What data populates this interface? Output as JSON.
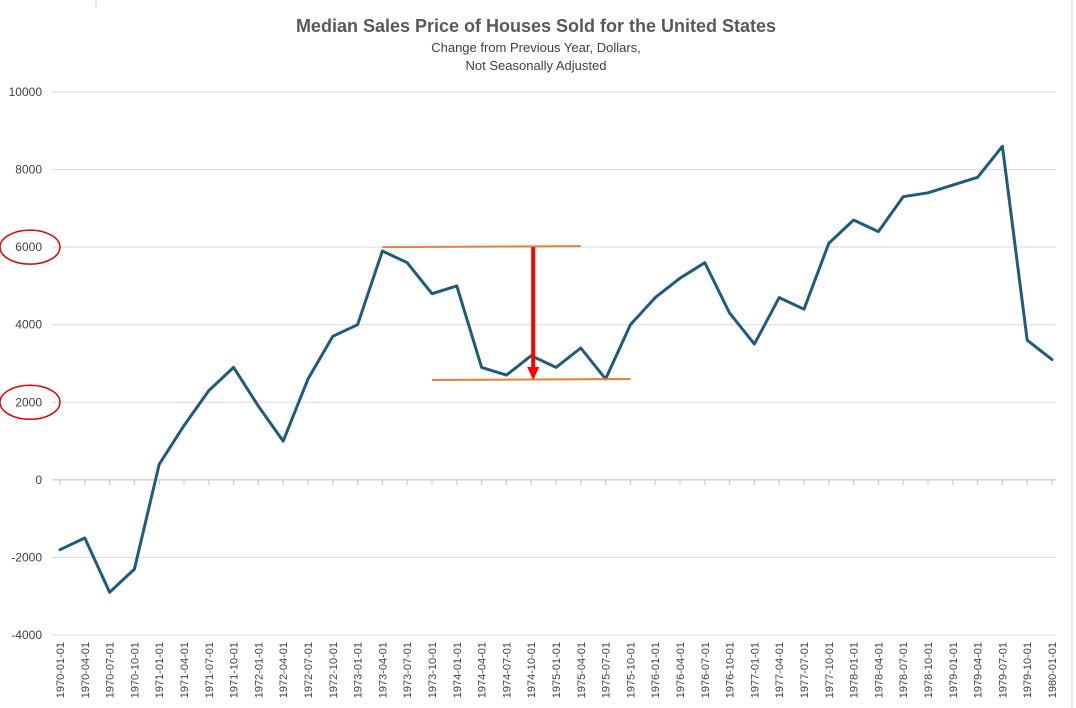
{
  "chart_data": {
    "type": "line",
    "title": "Median Sales Price of Houses Sold for the United States",
    "subtitle_lines": [
      "Change from Previous Year, Dollars,",
      "Not Seasonally Adjusted"
    ],
    "xlabel": "",
    "ylabel": "",
    "ylim": [
      -4000,
      10000
    ],
    "yticks": [
      -4000,
      -2000,
      0,
      2000,
      4000,
      6000,
      8000,
      10000
    ],
    "grid": true,
    "legend": "none",
    "series_color": "#1f5c7a",
    "categories": [
      "1970-01-01",
      "1970-04-01",
      "1970-07-01",
      "1970-10-01",
      "1971-01-01",
      "1971-04-01",
      "1971-07-01",
      "1971-10-01",
      "1972-01-01",
      "1972-04-01",
      "1972-07-01",
      "1972-10-01",
      "1973-01-01",
      "1973-04-01",
      "1973-07-01",
      "1973-10-01",
      "1974-01-01",
      "1974-04-01",
      "1974-07-01",
      "1974-10-01",
      "1975-01-01",
      "1975-04-01",
      "1975-07-01",
      "1975-10-01",
      "1976-01-01",
      "1976-04-01",
      "1976-07-01",
      "1976-10-01",
      "1977-01-01",
      "1977-04-01",
      "1977-07-01",
      "1977-10-01",
      "1978-01-01",
      "1978-04-01",
      "1978-07-01",
      "1978-10-01",
      "1979-01-01",
      "1979-04-01",
      "1979-07-01",
      "1979-10-01",
      "1980-01-01"
    ],
    "series": [
      {
        "values": [
          -1800,
          -1500,
          -2900,
          -2300,
          400,
          1400,
          2300,
          2900,
          1900,
          1000,
          2600,
          3700,
          4000,
          5900,
          5600,
          4800,
          5000,
          2900,
          2700,
          3200,
          2900,
          3400,
          2600,
          4000,
          4700,
          5200,
          5600,
          4300,
          3500,
          4700,
          4400,
          6100,
          6700,
          6400,
          7300,
          7400,
          7600,
          7800,
          8600,
          3600,
          3100
        ]
      }
    ],
    "annotations": {
      "upper_line": {
        "y": 6000,
        "from": "1973-04-01",
        "to": "1975-04-01",
        "color": "#ed7d31"
      },
      "lower_line": {
        "y": 2600,
        "from": "1973-10-01",
        "to": "1975-10-01",
        "color": "#ed7d31"
      },
      "arrow": {
        "at": "1974-10-01",
        "from_y": 6000,
        "to_y": 2600,
        "color": "#ff0000"
      },
      "circled_ticks": [
        6000,
        2000
      ],
      "circle_color": "#e00000"
    }
  }
}
